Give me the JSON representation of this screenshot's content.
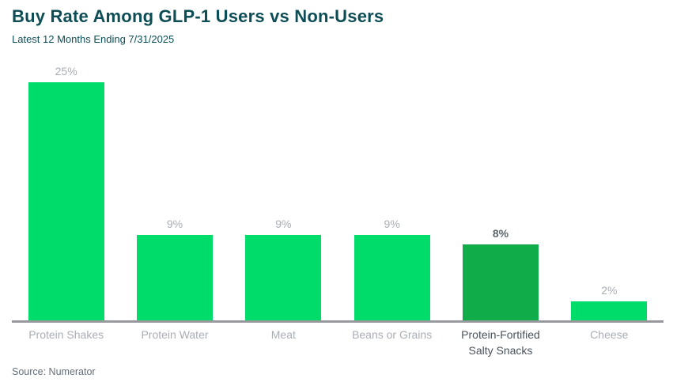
{
  "header": {
    "title": "Buy Rate Among GLP-1 Users vs Non-Users",
    "subtitle": "Latest 12 Months Ending 7/31/2025"
  },
  "chart_data": {
    "type": "bar",
    "title": "Buy Rate Among GLP-1 Users vs Non-Users",
    "subtitle": "Latest 12 Months Ending 7/31/2025",
    "categories": [
      "Protein Shakes",
      "Protein Water",
      "Meat",
      "Beans or Grains",
      "Protein-Fortified Salty Snacks",
      "Cheese"
    ],
    "values": [
      25,
      9,
      9,
      9,
      8,
      2
    ],
    "value_labels": [
      "25%",
      "9%",
      "9%",
      "9%",
      "8%",
      "2%"
    ],
    "highlighted_index": 4,
    "xlabel": "",
    "ylabel": "",
    "ylim": [
      0,
      25
    ],
    "grid": false,
    "legend": false,
    "bar_color": "#00dc69",
    "highlight_bar_color": "#10ac4a",
    "value_label_color": "#a9aeb5",
    "highlight_value_label_color": "#5c666b",
    "category_label_color": "#a9aeb5",
    "highlight_category_label_color": "#49525a",
    "axis_line_color": "#97999d"
  },
  "footer": {
    "source": "Source: Numerator"
  }
}
